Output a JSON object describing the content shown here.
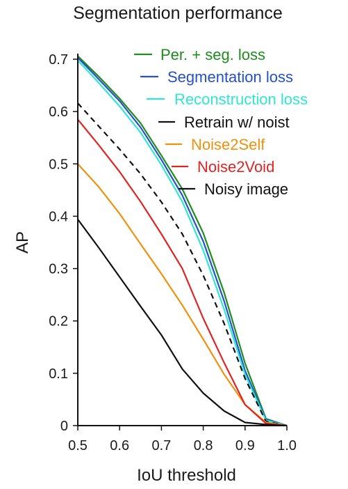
{
  "chart_data": {
    "type": "line",
    "title": "Segmentation performance",
    "xlabel": "IoU threshold",
    "ylabel": "AP",
    "xlim": [
      0.5,
      1.0
    ],
    "ylim": [
      0,
      0.7
    ],
    "x_ticks": [
      "0.5",
      "0.6",
      "0.7",
      "0.8",
      "0.9",
      "1.0"
    ],
    "y_ticks": [
      "0",
      "0.1",
      "0.2",
      "0.3",
      "0.4",
      "0.5",
      "0.6",
      "0.7"
    ],
    "grid": false,
    "legend_position": "top-right",
    "x": [
      0.5,
      0.55,
      0.6,
      0.65,
      0.7,
      0.75,
      0.8,
      0.85,
      0.9,
      0.95,
      1.0
    ],
    "series": [
      {
        "name": "Per. + seg. loss",
        "color": "#1e8c1e",
        "style": "solid",
        "values": [
          0.706,
          0.667,
          0.625,
          0.578,
          0.516,
          0.452,
          0.368,
          0.254,
          0.119,
          0.013,
          0.0
        ]
      },
      {
        "name": "Segmentation loss",
        "color": "#2450c8",
        "style": "solid",
        "values": [
          0.703,
          0.662,
          0.62,
          0.57,
          0.508,
          0.44,
          0.352,
          0.238,
          0.105,
          0.012,
          0.0
        ]
      },
      {
        "name": "Reconstruction loss",
        "color": "#2ee6d6",
        "style": "solid",
        "values": [
          0.698,
          0.655,
          0.61,
          0.56,
          0.498,
          0.428,
          0.335,
          0.222,
          0.098,
          0.01,
          0.0
        ]
      },
      {
        "name": "Retrain w/ noist",
        "color": "#111111",
        "style": "dashed",
        "values": [
          0.616,
          0.572,
          0.528,
          0.481,
          0.427,
          0.366,
          0.287,
          0.195,
          0.09,
          0.008,
          0.0
        ]
      },
      {
        "name": "Noise2Self",
        "color": "#f0900e",
        "style": "solid",
        "values": [
          0.5,
          0.456,
          0.405,
          0.347,
          0.29,
          0.23,
          0.165,
          0.098,
          0.04,
          0.006,
          0.0
        ]
      },
      {
        "name": "Noise2Void",
        "color": "#e02424",
        "style": "solid",
        "values": [
          0.585,
          0.536,
          0.485,
          0.428,
          0.366,
          0.3,
          0.205,
          0.12,
          0.04,
          0.004,
          0.0
        ]
      },
      {
        "name": "Noisy image",
        "color": "#111111",
        "style": "solid",
        "values": [
          0.394,
          0.34,
          0.284,
          0.228,
          0.173,
          0.108,
          0.062,
          0.028,
          0.006,
          0.002,
          0.0
        ]
      }
    ]
  }
}
